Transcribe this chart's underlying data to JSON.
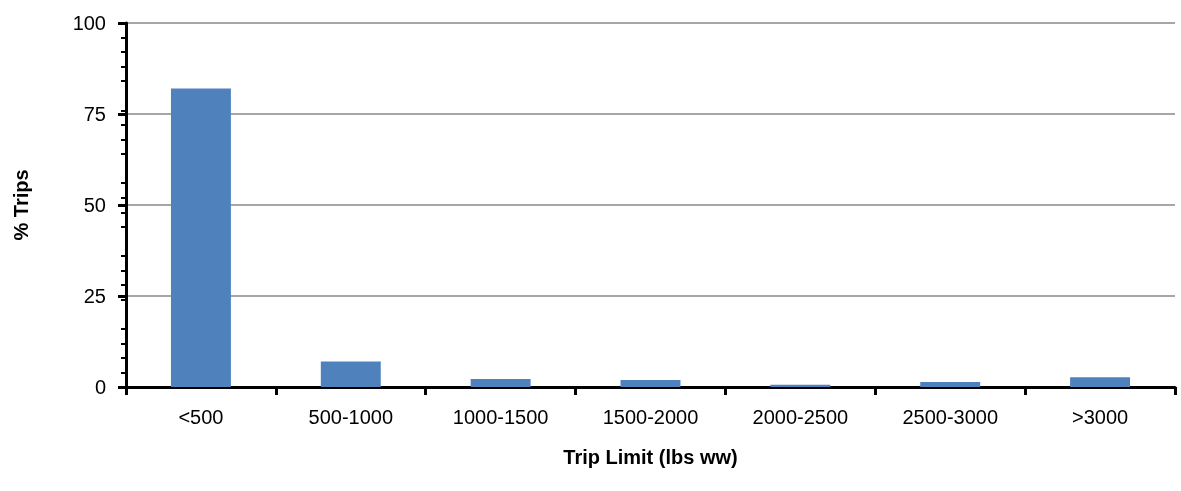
{
  "chart_data": {
    "type": "bar",
    "xlabel": "Trip Limit (lbs ww)",
    "ylabel": "% Trips",
    "categories": [
      "<500",
      "500-1000",
      "1000-1500",
      "1500-2000",
      "2000-2500",
      "2500-3000",
      ">3000"
    ],
    "values": [
      82,
      7,
      2.2,
      1.9,
      0.6,
      1.4,
      2.7
    ],
    "color": "#4f81bd",
    "ylim": [
      0,
      100
    ],
    "yticks": [
      0,
      25,
      50,
      75,
      100
    ],
    "grid": "y"
  }
}
